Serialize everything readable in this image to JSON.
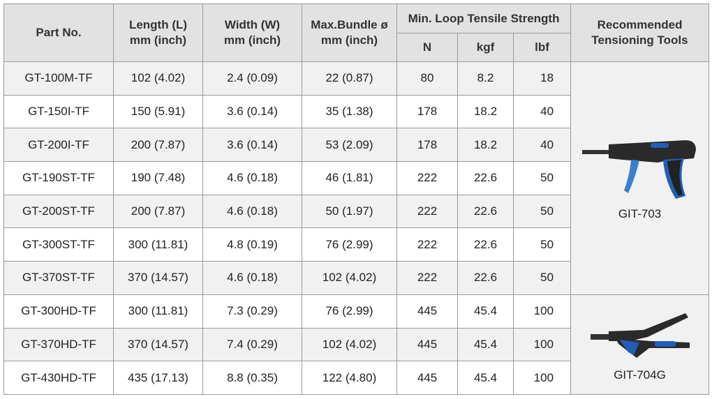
{
  "table": {
    "header": {
      "part_no": "Part No.",
      "length": [
        "Length (L)",
        "mm (inch)"
      ],
      "width": [
        "Width (W)",
        "mm (inch)"
      ],
      "bundle": [
        "Max.Bundle ø",
        "mm (inch)"
      ],
      "tensile": "Min. Loop Tensile Strength",
      "units": [
        "N",
        "kgf",
        "lbf"
      ],
      "tools": [
        "Recommended",
        "Tensioning Tools"
      ]
    },
    "rows": [
      [
        "GT-100M-TF",
        "102 (4.02)",
        "2.4 (0.09)",
        "22 (0.87)",
        "80",
        "8.2",
        "18"
      ],
      [
        "GT-150I-TF",
        "150 (5.91)",
        "3.6 (0.14)",
        "35 (1.38)",
        "178",
        "18.2",
        "40"
      ],
      [
        "GT-200I-TF",
        "200 (7.87)",
        "3.6 (0.14)",
        "53 (2.09)",
        "178",
        "18.2",
        "40"
      ],
      [
        "GT-190ST-TF",
        "190 (7.48)",
        "4.6 (0.18)",
        "46 (1.81)",
        "222",
        "22.6",
        "50"
      ],
      [
        "GT-200ST-TF",
        "200 (7.87)",
        "4.6 (0.18)",
        "50 (1.97)",
        "222",
        "22.6",
        "50"
      ],
      [
        "GT-300ST-TF",
        "300 (11.81)",
        "4.8 (0.19)",
        "76 (2.99)",
        "222",
        "22.6",
        "50"
      ],
      [
        "GT-370ST-TF",
        "370 (14.57)",
        "4.6 (0.18)",
        "102 (4.02)",
        "222",
        "22.6",
        "50"
      ],
      [
        "GT-300HD-TF",
        "300 (11.81)",
        "7.3 (0.29)",
        "76 (2.99)",
        "445",
        "45.4",
        "100"
      ],
      [
        "GT-370HD-TF",
        "370 (14.57)",
        "7.4 (0.29)",
        "102 (4.02)",
        "445",
        "45.4",
        "100"
      ],
      [
        "GT-430HD-TF",
        "435 (17.13)",
        "8.8 (0.35)",
        "122 (4.80)",
        "445",
        "45.4",
        "100"
      ]
    ],
    "tools": [
      "GIT-703",
      "GIT-704G"
    ]
  }
}
